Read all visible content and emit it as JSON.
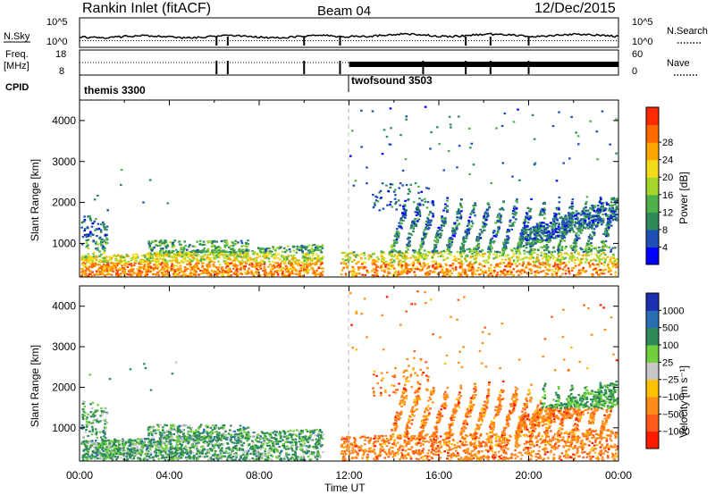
{
  "header": {
    "station": "Rankin Inlet (fitACF)",
    "beam": "Beam 04",
    "date": "12/Dec/2015"
  },
  "panels": {
    "nsky_label": "N.Sky",
    "nsearch_label": "N.Search",
    "freq_label_1": "Freq.",
    "freq_label_2": "[MHz]",
    "nave_label": "Nave",
    "cpid_label": "CPID",
    "nsky_ticks": [
      "10^5",
      "10^0"
    ],
    "nsearch_ticks": [
      "10^5",
      "10^0"
    ],
    "freq_ticks": [
      "18",
      "8"
    ],
    "nave_ticks": [
      "60",
      "0"
    ],
    "cpid_segments": [
      {
        "name": "themis 3300",
        "start_ut": 0
      },
      {
        "name": "twofsound 3503",
        "start_ut": 12
      }
    ]
  },
  "colors": {
    "power": [
      "#0000ff",
      "#1d4fb5",
      "#2e8b57",
      "#4fb14a",
      "#a5d62b",
      "#f2dc1a",
      "#ffa500",
      "#ff6a00",
      "#ff2a00"
    ],
    "velocity": [
      "#1c2fb0",
      "#2b6db3",
      "#2e8b57",
      "#6fcf3c",
      "#c8c8c8",
      "#ffc000",
      "#ff8c1a",
      "#ff5a1a",
      "#ff1a00"
    ]
  },
  "chart_data": [
    {
      "type": "heatmap",
      "ylabel": "Slant Range [km]",
      "xlabel": "",
      "xlim": [
        0,
        24
      ],
      "ylim": [
        180,
        4500
      ],
      "yticks": [
        "1000",
        "2000",
        "3000",
        "4000"
      ],
      "colorbar_label": "Power [dB]",
      "colorbar_ticks": [
        "4",
        "8",
        "12",
        "16",
        "20",
        "24",
        "28"
      ]
    },
    {
      "type": "heatmap",
      "ylabel": "Slant Range [km]",
      "xlabel": "Time UT",
      "xlim": [
        0,
        24
      ],
      "ylim": [
        180,
        4500
      ],
      "xticks": [
        "00:00",
        "04:00",
        "08:00",
        "12:00",
        "16:00",
        "20:00",
        "00:00"
      ],
      "yticks": [
        "1000",
        "2000",
        "3000",
        "4000"
      ],
      "colorbar_label": "Velocity [m s⁻¹]",
      "colorbar_ticks": [
        "1000",
        "500",
        "100",
        "25",
        "−25",
        "−100",
        "−500",
        "−1000"
      ]
    }
  ]
}
